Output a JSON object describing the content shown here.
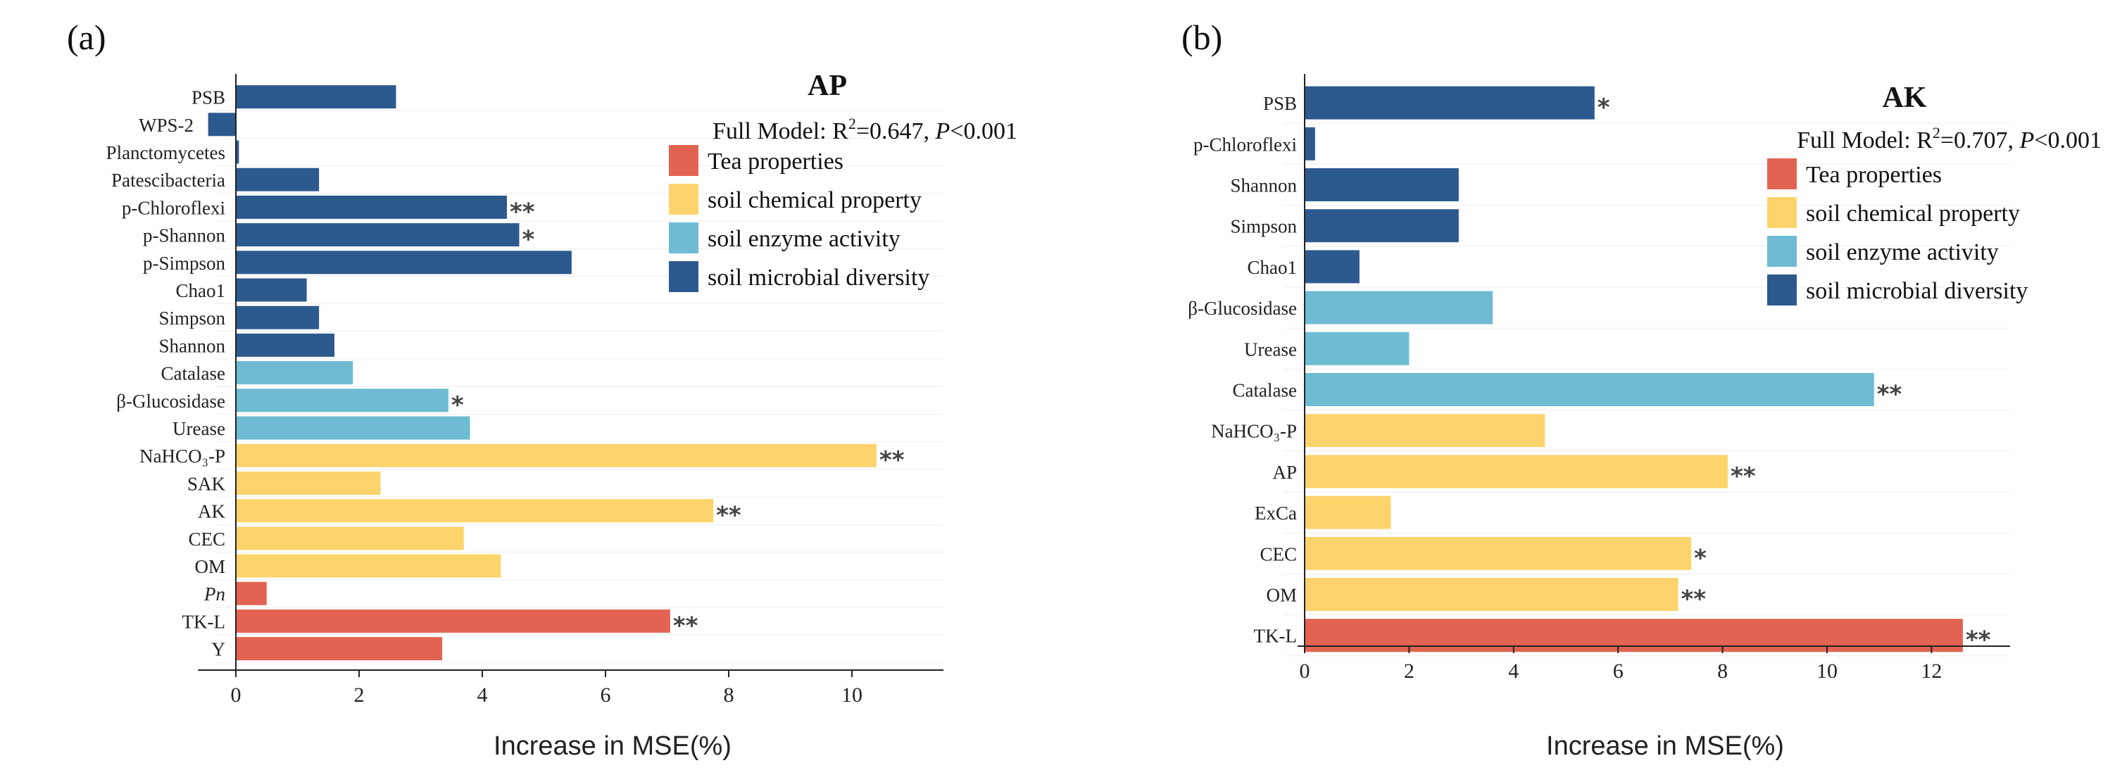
{
  "colors": {
    "tea": "#E36352",
    "chem": "#FDD46C",
    "enzyme": "#6EBBD3",
    "micro": "#2D5A8E"
  },
  "legend": [
    {
      "group": "tea",
      "label": "Tea properties"
    },
    {
      "group": "chem",
      "label": "soil chemical property"
    },
    {
      "group": "enzyme",
      "label": "soil enzyme activity"
    },
    {
      "group": "micro",
      "label": "soil microbial diversity"
    }
  ],
  "chart_data": [
    {
      "type": "bar",
      "orientation": "horizontal",
      "panel_label": "(a)",
      "title": "AP",
      "model": {
        "prefix": "Full Model: R",
        "sup": "2",
        "r2": "=0.647, ",
        "p": "P",
        "ptext": "<0.001"
      },
      "xlabel": "Increase in MSE(%)",
      "xlim": [
        -0.5,
        11.5
      ],
      "xticks": [
        0,
        2,
        4,
        6,
        8,
        10
      ],
      "bars": [
        {
          "label": "PSB",
          "value": 2.6,
          "group": "micro",
          "sig": ""
        },
        {
          "label": "WPS-2",
          "value": -0.45,
          "group": "micro",
          "sig": ""
        },
        {
          "label": "Planctomycetes",
          "value": 0.05,
          "group": "micro",
          "sig": ""
        },
        {
          "label": "Patescibacteria",
          "value": 1.35,
          "group": "micro",
          "sig": ""
        },
        {
          "label": "p-Chloroflexi",
          "value": 4.4,
          "group": "micro",
          "sig": "**"
        },
        {
          "label": "p-Shannon",
          "value": 4.6,
          "group": "micro",
          "sig": "*"
        },
        {
          "label": "p-Simpson",
          "value": 5.45,
          "group": "micro",
          "sig": ""
        },
        {
          "label": "Chao1",
          "value": 1.15,
          "group": "micro",
          "sig": ""
        },
        {
          "label": "Simpson",
          "value": 1.35,
          "group": "micro",
          "sig": ""
        },
        {
          "label": "Shannon",
          "value": 1.6,
          "group": "micro",
          "sig": ""
        },
        {
          "label": "Catalase",
          "value": 1.9,
          "group": "enzyme",
          "sig": ""
        },
        {
          "label": "β-Glucosidase",
          "value": 3.45,
          "group": "enzyme",
          "sig": "*"
        },
        {
          "label": "Urease",
          "value": 3.8,
          "group": "enzyme",
          "sig": ""
        },
        {
          "label": "NaHCO₃-P",
          "value": 10.4,
          "group": "chem",
          "sig": "**"
        },
        {
          "label": "SAK",
          "value": 2.35,
          "group": "chem",
          "sig": ""
        },
        {
          "label": "AK",
          "value": 7.75,
          "group": "chem",
          "sig": "**"
        },
        {
          "label": "CEC",
          "value": 3.7,
          "group": "chem",
          "sig": ""
        },
        {
          "label": "OM",
          "value": 4.3,
          "group": "chem",
          "sig": ""
        },
        {
          "label": "Pn",
          "value": 0.5,
          "group": "tea",
          "sig": "",
          "italic": true
        },
        {
          "label": "TK-L",
          "value": 7.05,
          "group": "tea",
          "sig": "**"
        },
        {
          "label": "Y",
          "value": 3.35,
          "group": "tea",
          "sig": ""
        }
      ]
    },
    {
      "type": "bar",
      "orientation": "horizontal",
      "panel_label": "(b)",
      "title": "AK",
      "model": {
        "prefix": "Full Model: R",
        "sup": "2",
        "r2": "=0.707, ",
        "p": "P",
        "ptext": "<0.001"
      },
      "xlabel": "Increase in MSE(%)",
      "xlim": [
        0,
        13.5
      ],
      "xticks": [
        0,
        2,
        4,
        6,
        8,
        10,
        12
      ],
      "bars": [
        {
          "label": "PSB",
          "value": 5.55,
          "group": "micro",
          "sig": "*"
        },
        {
          "label": "p-Chloroflexi",
          "value": 0.2,
          "group": "micro",
          "sig": ""
        },
        {
          "label": "Shannon",
          "value": 2.95,
          "group": "micro",
          "sig": ""
        },
        {
          "label": "Simpson",
          "value": 2.95,
          "group": "micro",
          "sig": ""
        },
        {
          "label": "Chao1",
          "value": 1.05,
          "group": "micro",
          "sig": ""
        },
        {
          "label": "β-Glucosidase",
          "value": 3.6,
          "group": "enzyme",
          "sig": ""
        },
        {
          "label": "Urease",
          "value": 2.0,
          "group": "enzyme",
          "sig": ""
        },
        {
          "label": "Catalase",
          "value": 10.9,
          "group": "enzyme",
          "sig": "**"
        },
        {
          "label": "NaHCO₃-P",
          "value": 4.6,
          "group": "chem",
          "sig": ""
        },
        {
          "label": "AP",
          "value": 8.1,
          "group": "chem",
          "sig": "**"
        },
        {
          "label": "ExCa",
          "value": 1.65,
          "group": "chem",
          "sig": ""
        },
        {
          "label": "CEC",
          "value": 7.4,
          "group": "chem",
          "sig": "*"
        },
        {
          "label": "OM",
          "value": 7.15,
          "group": "chem",
          "sig": "**"
        },
        {
          "label": "TK-L",
          "value": 12.6,
          "group": "tea",
          "sig": "**"
        }
      ]
    }
  ]
}
